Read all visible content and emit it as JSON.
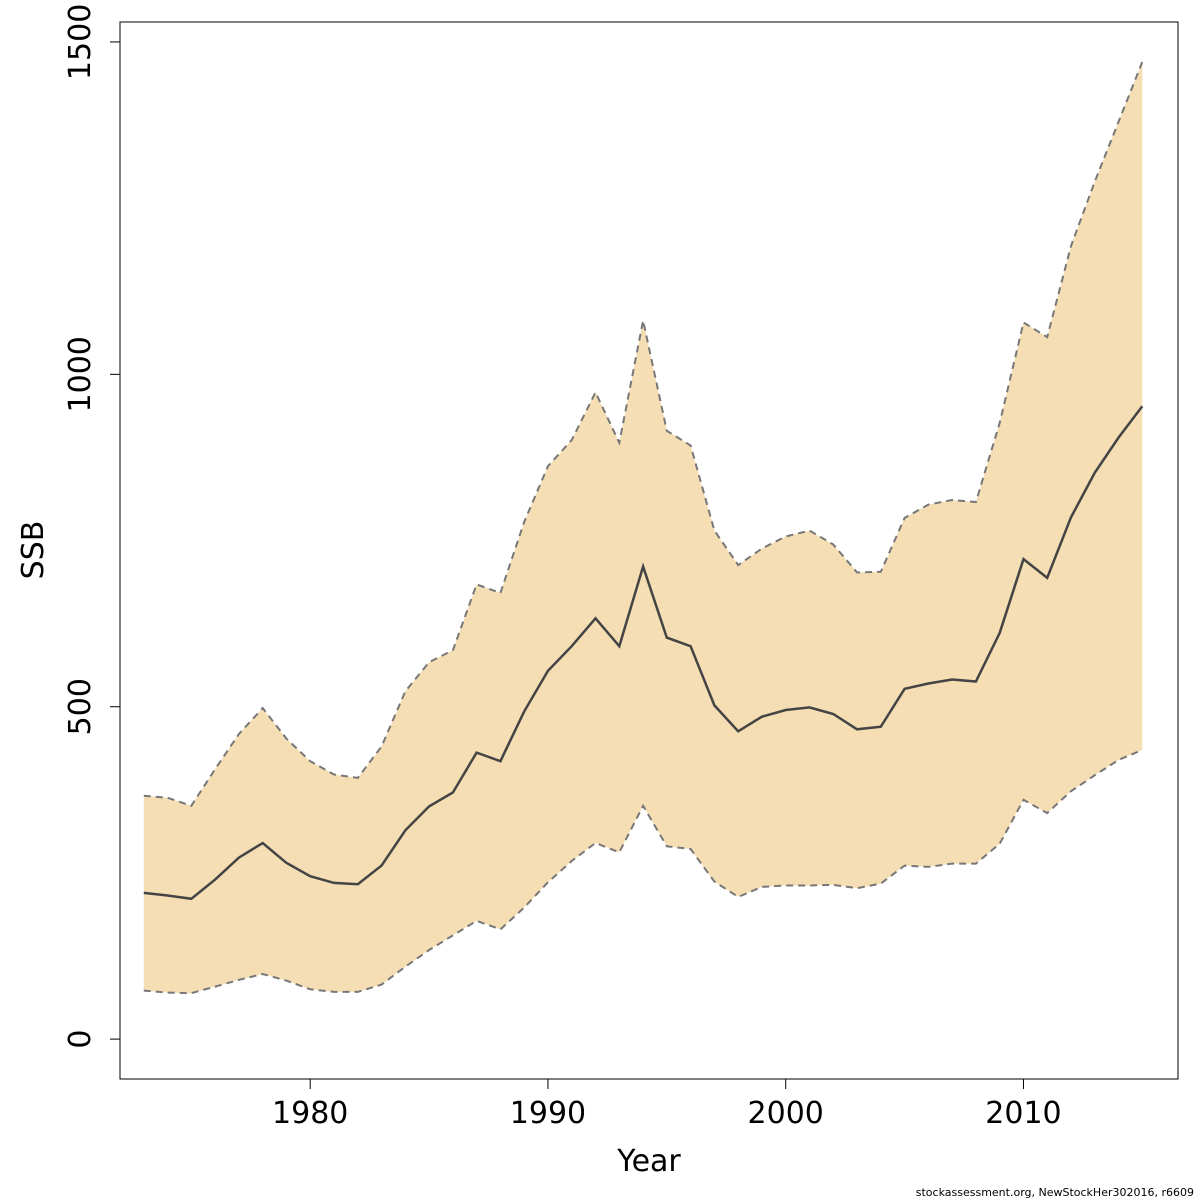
{
  "chart_data": {
    "type": "area",
    "xlabel": "Year",
    "ylabel": "SSB",
    "xlim": [
      1972,
      2016.5
    ],
    "ylim": [
      -60,
      1530
    ],
    "x_ticks": [
      1980,
      1990,
      2000,
      2010
    ],
    "y_ticks": [
      0,
      500,
      1000,
      1500
    ],
    "grid": false,
    "legend": "none",
    "colors": {
      "band": "#F5DEB3",
      "line": "#444444",
      "bound": "#777777"
    },
    "x": [
      1973,
      1974,
      1975,
      1976,
      1977,
      1978,
      1979,
      1980,
      1981,
      1982,
      1983,
      1984,
      1985,
      1986,
      1987,
      1988,
      1989,
      1990,
      1991,
      1992,
      1993,
      1994,
      1995,
      1996,
      1997,
      1998,
      1999,
      2000,
      2001,
      2002,
      2003,
      2004,
      2005,
      2006,
      2007,
      2008,
      2009,
      2010,
      2011,
      2012,
      2013,
      2014,
      2015
    ],
    "series": [
      {
        "role": "estimate",
        "values": [
          220,
          216,
          211,
          240,
          273,
          295,
          265,
          245,
          235,
          233,
          261,
          314,
          350,
          371,
          431,
          418,
          493,
          554,
          591,
          633,
          591,
          711,
          604,
          591,
          502,
          463,
          485,
          495,
          499,
          489,
          466,
          470,
          527,
          535,
          541,
          538,
          611,
          722,
          694,
          785,
          852,
          905,
          952
        ]
      },
      {
        "role": "upper",
        "values": [
          366,
          363,
          351,
          406,
          459,
          498,
          452,
          418,
          398,
          393,
          440,
          523,
          567,
          585,
          684,
          671,
          778,
          862,
          901,
          973,
          897,
          1081,
          915,
          893,
          765,
          713,
          738,
          756,
          765,
          744,
          702,
          703,
          784,
          804,
          811,
          808,
          927,
          1078,
          1056,
          1193,
          1290,
          1380,
          1470
        ]
      },
      {
        "role": "lower",
        "values": [
          73,
          70,
          69,
          79,
          89,
          98,
          88,
          75,
          71,
          71,
          82,
          109,
          134,
          156,
          178,
          165,
          198,
          236,
          268,
          295,
          281,
          351,
          290,
          286,
          237,
          214,
          229,
          231,
          231,
          232,
          227,
          234,
          261,
          259,
          264,
          264,
          294,
          360,
          340,
          373,
          397,
          420,
          435
        ]
      }
    ]
  },
  "footer_text": "stockassessment.org, NewStockHer302016, r6609"
}
